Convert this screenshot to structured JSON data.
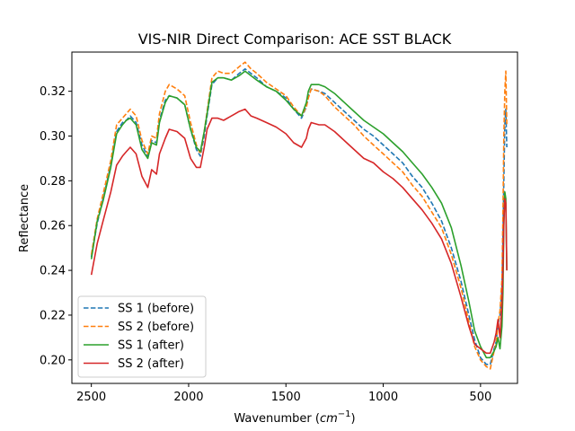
{
  "chart_data": {
    "type": "line",
    "title": "VIS-NIR Direct Comparison: ACE SST BLACK",
    "xlabel_main": "Wavenumber (",
    "xlabel_unit": "cm",
    "xlabel_exp": "−1",
    "xlabel_close": ")",
    "ylabel": "Reflectance",
    "x_inverted": true,
    "xlim": [
      2600,
      310
    ],
    "ylim": [
      0.1895,
      0.3375
    ],
    "x_ticks": [
      2500,
      2000,
      1500,
      1000,
      500
    ],
    "x_tick_labels": [
      "2500",
      "2000",
      "1500",
      "1000",
      "500"
    ],
    "y_ticks": [
      0.2,
      0.22,
      0.24,
      0.26,
      0.28,
      0.3,
      0.32
    ],
    "y_tick_labels": [
      "0.20",
      "0.22",
      "0.24",
      "0.26",
      "0.28",
      "0.30",
      "0.32"
    ],
    "grid": false,
    "legend_position": "lower-left",
    "series": [
      {
        "name": "SS 1 (before)",
        "color": "#1f77b4",
        "dash": "dashed",
        "x": [
          2500,
          2470,
          2440,
          2400,
          2370,
          2340,
          2320,
          2300,
          2270,
          2240,
          2210,
          2190,
          2165,
          2150,
          2120,
          2100,
          2060,
          2020,
          1990,
          1960,
          1940,
          1920,
          1905,
          1880,
          1850,
          1820,
          1780,
          1740,
          1710,
          1680,
          1650,
          1600,
          1550,
          1500,
          1460,
          1420,
          1395,
          1385,
          1370,
          1330,
          1300,
          1250,
          1200,
          1150,
          1100,
          1050,
          1000,
          950,
          900,
          850,
          800,
          750,
          700,
          650,
          600,
          560,
          530,
          500,
          470,
          450,
          430,
          420,
          410,
          400,
          390,
          385,
          380,
          375,
          370,
          365
        ],
        "y": [
          0.246,
          0.261,
          0.272,
          0.287,
          0.302,
          0.306,
          0.307,
          0.309,
          0.306,
          0.296,
          0.291,
          0.298,
          0.297,
          0.307,
          0.316,
          0.318,
          0.317,
          0.314,
          0.303,
          0.294,
          0.291,
          0.3,
          0.309,
          0.323,
          0.326,
          0.326,
          0.325,
          0.328,
          0.33,
          0.328,
          0.326,
          0.322,
          0.32,
          0.317,
          0.312,
          0.308,
          0.313,
          0.318,
          0.321,
          0.32,
          0.319,
          0.315,
          0.311,
          0.307,
          0.303,
          0.3,
          0.296,
          0.292,
          0.288,
          0.282,
          0.277,
          0.27,
          0.262,
          0.25,
          0.235,
          0.22,
          0.209,
          0.201,
          0.198,
          0.198,
          0.205,
          0.208,
          0.216,
          0.22,
          0.232,
          0.255,
          0.28,
          0.305,
          0.312,
          0.295
        ]
      },
      {
        "name": "SS 2 (before)",
        "color": "#ff7f0e",
        "dash": "dashed",
        "x": [
          2500,
          2470,
          2440,
          2400,
          2370,
          2340,
          2320,
          2300,
          2270,
          2240,
          2210,
          2190,
          2165,
          2150,
          2120,
          2100,
          2060,
          2020,
          1990,
          1960,
          1940,
          1920,
          1905,
          1880,
          1850,
          1820,
          1780,
          1740,
          1710,
          1680,
          1650,
          1600,
          1550,
          1500,
          1460,
          1420,
          1395,
          1385,
          1370,
          1330,
          1300,
          1250,
          1200,
          1150,
          1100,
          1050,
          1000,
          950,
          900,
          850,
          800,
          750,
          700,
          650,
          600,
          560,
          530,
          500,
          470,
          450,
          430,
          420,
          410,
          400,
          390,
          385,
          380,
          375,
          370,
          365
        ],
        "y": [
          0.247,
          0.263,
          0.274,
          0.289,
          0.305,
          0.308,
          0.31,
          0.312,
          0.309,
          0.298,
          0.292,
          0.3,
          0.299,
          0.31,
          0.32,
          0.323,
          0.321,
          0.318,
          0.306,
          0.296,
          0.292,
          0.302,
          0.311,
          0.326,
          0.329,
          0.328,
          0.328,
          0.331,
          0.333,
          0.33,
          0.328,
          0.324,
          0.321,
          0.318,
          0.313,
          0.309,
          0.313,
          0.317,
          0.321,
          0.32,
          0.318,
          0.313,
          0.309,
          0.305,
          0.3,
          0.296,
          0.292,
          0.288,
          0.284,
          0.278,
          0.273,
          0.266,
          0.259,
          0.247,
          0.232,
          0.217,
          0.206,
          0.2,
          0.197,
          0.196,
          0.204,
          0.207,
          0.216,
          0.222,
          0.236,
          0.265,
          0.3,
          0.32,
          0.329,
          0.305
        ]
      },
      {
        "name": "SS 1 (after)",
        "color": "#2ca02c",
        "dash": "solid",
        "x": [
          2500,
          2470,
          2440,
          2400,
          2370,
          2340,
          2320,
          2300,
          2270,
          2240,
          2210,
          2190,
          2165,
          2150,
          2120,
          2100,
          2060,
          2020,
          1990,
          1960,
          1940,
          1920,
          1905,
          1880,
          1850,
          1820,
          1780,
          1740,
          1710,
          1680,
          1650,
          1600,
          1550,
          1500,
          1460,
          1420,
          1395,
          1385,
          1370,
          1330,
          1300,
          1250,
          1200,
          1150,
          1100,
          1050,
          1000,
          950,
          900,
          850,
          800,
          750,
          700,
          650,
          600,
          560,
          530,
          500,
          470,
          450,
          430,
          420,
          410,
          400,
          390,
          385,
          380,
          375,
          370,
          365
        ],
        "y": [
          0.245,
          0.262,
          0.271,
          0.286,
          0.301,
          0.305,
          0.307,
          0.308,
          0.305,
          0.294,
          0.29,
          0.297,
          0.296,
          0.306,
          0.315,
          0.318,
          0.317,
          0.314,
          0.303,
          0.295,
          0.293,
          0.302,
          0.31,
          0.324,
          0.326,
          0.326,
          0.325,
          0.327,
          0.329,
          0.327,
          0.325,
          0.322,
          0.32,
          0.316,
          0.312,
          0.309,
          0.315,
          0.32,
          0.323,
          0.323,
          0.322,
          0.319,
          0.315,
          0.311,
          0.307,
          0.304,
          0.301,
          0.297,
          0.293,
          0.288,
          0.283,
          0.277,
          0.27,
          0.259,
          0.242,
          0.226,
          0.213,
          0.206,
          0.201,
          0.201,
          0.204,
          0.206,
          0.21,
          0.205,
          0.215,
          0.23,
          0.26,
          0.275,
          0.272,
          0.24
        ]
      },
      {
        "name": "SS 2 (after)",
        "color": "#d62728",
        "dash": "solid",
        "x": [
          2500,
          2470,
          2440,
          2400,
          2370,
          2340,
          2320,
          2300,
          2270,
          2240,
          2210,
          2190,
          2165,
          2150,
          2120,
          2100,
          2060,
          2020,
          1990,
          1960,
          1940,
          1920,
          1905,
          1880,
          1850,
          1820,
          1780,
          1740,
          1710,
          1680,
          1650,
          1600,
          1550,
          1500,
          1460,
          1420,
          1395,
          1385,
          1370,
          1330,
          1300,
          1250,
          1200,
          1150,
          1100,
          1050,
          1000,
          950,
          900,
          850,
          800,
          750,
          700,
          650,
          600,
          560,
          530,
          500,
          470,
          450,
          430,
          420,
          410,
          400,
          390,
          385,
          380,
          375,
          370,
          365
        ],
        "y": [
          0.238,
          0.252,
          0.262,
          0.275,
          0.287,
          0.291,
          0.293,
          0.295,
          0.292,
          0.282,
          0.277,
          0.285,
          0.283,
          0.292,
          0.299,
          0.303,
          0.302,
          0.299,
          0.29,
          0.286,
          0.286,
          0.295,
          0.303,
          0.308,
          0.308,
          0.307,
          0.309,
          0.311,
          0.312,
          0.309,
          0.308,
          0.306,
          0.304,
          0.301,
          0.297,
          0.295,
          0.299,
          0.303,
          0.306,
          0.305,
          0.305,
          0.302,
          0.298,
          0.294,
          0.29,
          0.288,
          0.284,
          0.281,
          0.277,
          0.272,
          0.267,
          0.261,
          0.254,
          0.243,
          0.228,
          0.215,
          0.207,
          0.205,
          0.203,
          0.203,
          0.208,
          0.212,
          0.218,
          0.21,
          0.225,
          0.24,
          0.262,
          0.272,
          0.27,
          0.24
        ]
      }
    ]
  }
}
